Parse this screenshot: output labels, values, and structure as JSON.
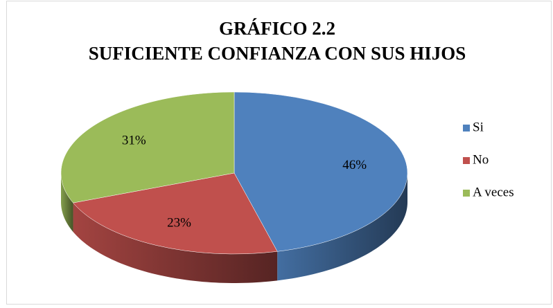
{
  "chart_data": {
    "type": "pie",
    "title": "GRÁFICO 2.2",
    "subtitle": "SUFICIENTE CONFIANZA CON SUS HIJOS",
    "categories": [
      "Si",
      "No",
      "A veces"
    ],
    "values": [
      46,
      23,
      31
    ],
    "value_labels": [
      "46%",
      "23%",
      "31%"
    ],
    "colors": [
      "#4f81bd",
      "#c0504d",
      "#9bbb59"
    ],
    "legend": "right"
  }
}
